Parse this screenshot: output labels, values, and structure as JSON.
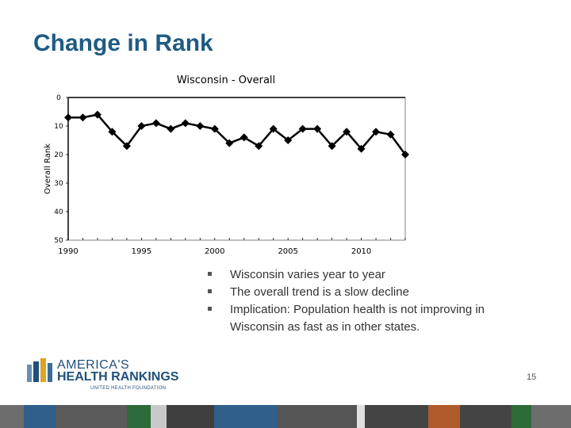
{
  "slide": {
    "title": "Change in Rank",
    "page_number": "15"
  },
  "bullets": [
    "Wisconsin varies year to year",
    "The overall trend is a slow decline",
    "Implication: Population health is not improving in Wisconsin as fast as in other states."
  ],
  "logo": {
    "line1": "AMERICA'S",
    "line2": "HEALTH RANKINGS",
    "line3": "UNITED HEALTH FOUNDATION"
  },
  "chart_data": {
    "type": "line",
    "title": "Wisconsin - Overall",
    "xlabel": "",
    "ylabel": "Overall Rank",
    "y_reversed": true,
    "ylim": [
      0,
      50
    ],
    "y_ticks": [
      0,
      10,
      20,
      30,
      40,
      50
    ],
    "x_ticks": [
      1990,
      1995,
      2000,
      2005,
      2010
    ],
    "xlim": [
      1990,
      2013
    ],
    "grid": false,
    "series": [
      {
        "x": [
          1990,
          1991,
          1992,
          1993,
          1994,
          1995,
          1996,
          1997,
          1998,
          1999,
          2000,
          2001,
          2002,
          2003,
          2004,
          2005,
          2006,
          2007,
          2008,
          2009,
          2010,
          2011,
          2012,
          2013
        ],
        "values": [
          7,
          7,
          6,
          12,
          17,
          10,
          9,
          11,
          9,
          10,
          11,
          16,
          14,
          17,
          11,
          15,
          11,
          11,
          17,
          12,
          18,
          12,
          13,
          20
        ]
      }
    ],
    "colors": {
      "line": "#000000",
      "axis": "#000000"
    }
  }
}
